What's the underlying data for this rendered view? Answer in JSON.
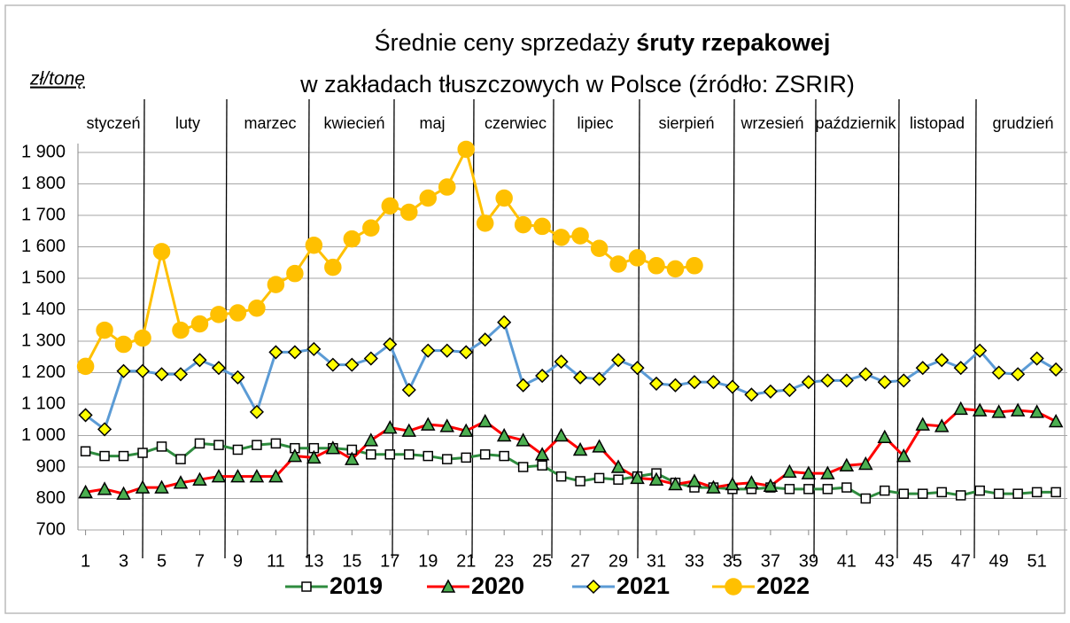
{
  "chart_data": {
    "type": "line",
    "title": "Średnie ceny  sprzedaży ",
    "title_bold": "śruty rzepakowej",
    "subtitle": "w zakładach tłuszczowych w Polsce  (źródło: ZSRIR)",
    "ylabel": "zł/tonę",
    "months": [
      "styczeń",
      "luty",
      "marzec",
      "kwiecień",
      "maj",
      "czerwiec",
      "lipiec",
      "sierpień",
      "wrzesień",
      "październik",
      "listopad",
      "grudzień"
    ],
    "x": [
      1,
      2,
      3,
      4,
      5,
      6,
      7,
      8,
      9,
      10,
      11,
      12,
      13,
      14,
      15,
      16,
      17,
      18,
      19,
      20,
      21,
      22,
      23,
      24,
      25,
      26,
      27,
      28,
      29,
      30,
      31,
      32,
      33,
      34,
      35,
      36,
      37,
      38,
      39,
      40,
      41,
      42,
      43,
      44,
      45,
      46,
      47,
      48,
      49,
      50,
      51,
      52
    ],
    "xlim": [
      0.6,
      52.6
    ],
    "xticks": [
      1,
      3,
      5,
      7,
      9,
      11,
      13,
      15,
      17,
      19,
      21,
      23,
      25,
      27,
      29,
      31,
      33,
      35,
      37,
      39,
      41,
      43,
      45,
      47,
      49,
      51
    ],
    "ylim": [
      700,
      1900
    ],
    "yticks": [
      700,
      800,
      900,
      {
        "value": 1000,
        "label": "1 000"
      },
      {
        "value": 1100,
        "label": "1 100"
      },
      {
        "value": 1200,
        "label": "1 200"
      },
      {
        "value": 1300,
        "label": "1 300"
      },
      {
        "value": 1400,
        "label": "1 400"
      },
      {
        "value": 1500,
        "label": "1 500"
      },
      {
        "value": 1600,
        "label": "1 600"
      },
      {
        "value": 1700,
        "label": "1 700"
      },
      {
        "value": 1800,
        "label": "1 800"
      },
      {
        "value": 1900,
        "label": "1 900"
      }
    ],
    "grid": true,
    "legend": "bottom",
    "series": [
      {
        "name": "2019",
        "color": "#2e8b3e",
        "marker": "square",
        "marker_color": "#ffffff",
        "values": [
          950,
          935,
          935,
          945,
          965,
          925,
          975,
          970,
          955,
          970,
          975,
          960,
          960,
          960,
          955,
          940,
          940,
          940,
          935,
          925,
          930,
          940,
          935,
          900,
          905,
          870,
          855,
          865,
          860,
          870,
          880,
          850,
          835,
          835,
          830,
          830,
          835,
          830,
          830,
          830,
          835,
          800,
          825,
          815,
          815,
          820,
          810,
          825,
          815,
          815,
          820,
          820
        ]
      },
      {
        "name": "2020",
        "color": "#ff0000",
        "marker": "triangle",
        "marker_color": "#4caf50",
        "values": [
          820,
          830,
          815,
          835,
          835,
          850,
          860,
          870,
          870,
          870,
          870,
          935,
          930,
          960,
          925,
          985,
          1025,
          1015,
          1035,
          1030,
          1015,
          1045,
          1000,
          985,
          940,
          1000,
          955,
          965,
          900,
          865,
          860,
          845,
          855,
          835,
          845,
          850,
          840,
          885,
          880,
          880,
          905,
          910,
          995,
          935,
          1035,
          1030,
          1085,
          1080,
          1075,
          1080,
          1075,
          1045
        ]
      },
      {
        "name": "2021",
        "color": "#5b9bd5",
        "marker": "diamond",
        "marker_color": "#ffff00",
        "values": [
          1065,
          1020,
          1205,
          1205,
          1195,
          1195,
          1240,
          1215,
          1185,
          1075,
          1265,
          1265,
          1275,
          1225,
          1225,
          1245,
          1290,
          1145,
          1270,
          1270,
          1265,
          1305,
          1360,
          1160,
          1190,
          1235,
          1185,
          1180,
          1240,
          1215,
          1165,
          1160,
          1170,
          1170,
          1155,
          1130,
          1140,
          1145,
          1170,
          1175,
          1175,
          1195,
          1170,
          1175,
          1215,
          1240,
          1215,
          1270,
          1200,
          1195,
          1245,
          1210
        ]
      },
      {
        "name": "2022",
        "color": "#ffc000",
        "marker": "circle",
        "marker_color": "#ffc000",
        "values": [
          1220,
          1335,
          1290,
          1310,
          1585,
          1335,
          1355,
          1385,
          1390,
          1405,
          1480,
          1515,
          1605,
          1535,
          1625,
          1660,
          1730,
          1710,
          1755,
          1790,
          1910,
          1675,
          1755,
          1670,
          1665,
          1630,
          1635,
          1595,
          1545,
          1565,
          1540,
          1530,
          1540,
          null,
          null,
          null,
          null,
          null,
          null,
          null,
          null,
          null,
          null,
          null,
          null,
          null,
          null,
          null,
          null,
          null,
          null,
          null
        ]
      }
    ]
  }
}
